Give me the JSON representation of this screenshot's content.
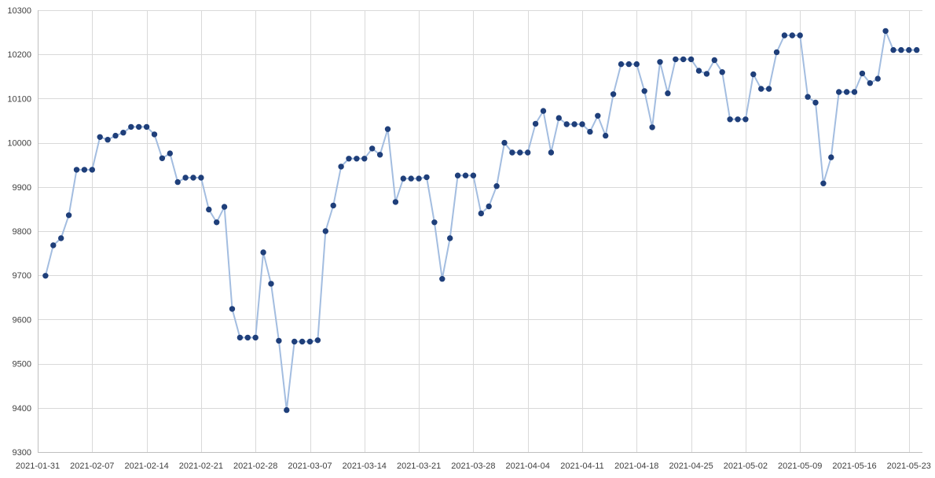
{
  "chart_data": {
    "type": "line",
    "title": "",
    "xlabel": "",
    "ylabel": "",
    "ylim": [
      9300,
      10300
    ],
    "y_ticks": [
      9300,
      9400,
      9500,
      9600,
      9700,
      9800,
      9900,
      10000,
      10100,
      10200,
      10300
    ],
    "x_tick_labels": [
      "2021-01-31",
      "2021-02-07",
      "2021-02-14",
      "2021-02-21",
      "2021-02-28",
      "2021-03-07",
      "2021-03-14",
      "2021-03-21",
      "2021-03-28",
      "2021-04-04",
      "2021-04-11",
      "2021-04-18",
      "2021-04-25",
      "2021-05-02",
      "2021-05-09",
      "2021-05-16",
      "2021-05-23"
    ],
    "grid": true,
    "legend": "none",
    "colors": {
      "line": "#a3bde0",
      "marker": "#1f3f7a",
      "grid": "#d9d9d9"
    },
    "series": [
      {
        "x": [
          "2021-02-01",
          "2021-02-02",
          "2021-02-03",
          "2021-02-04",
          "2021-02-05",
          "2021-02-06",
          "2021-02-07",
          "2021-02-08",
          "2021-02-09",
          "2021-02-10",
          "2021-02-11",
          "2021-02-12",
          "2021-02-13",
          "2021-02-14",
          "2021-02-15",
          "2021-02-16",
          "2021-02-17",
          "2021-02-18",
          "2021-02-19",
          "2021-02-20",
          "2021-02-21",
          "2021-02-22",
          "2021-02-23",
          "2021-02-24",
          "2021-02-25",
          "2021-02-26",
          "2021-02-27",
          "2021-02-28",
          "2021-03-01",
          "2021-03-02",
          "2021-03-03",
          "2021-03-04",
          "2021-03-05",
          "2021-03-06",
          "2021-03-07",
          "2021-03-08",
          "2021-03-09",
          "2021-03-10",
          "2021-03-11",
          "2021-03-12",
          "2021-03-13",
          "2021-03-14",
          "2021-03-15",
          "2021-03-16",
          "2021-03-17",
          "2021-03-18",
          "2021-03-19",
          "2021-03-20",
          "2021-03-21",
          "2021-03-22",
          "2021-03-23",
          "2021-03-24",
          "2021-03-25",
          "2021-03-26",
          "2021-03-27",
          "2021-03-28",
          "2021-03-29",
          "2021-03-30",
          "2021-03-31",
          "2021-04-01",
          "2021-04-02",
          "2021-04-03",
          "2021-04-04",
          "2021-04-05",
          "2021-04-06",
          "2021-04-07",
          "2021-04-08",
          "2021-04-09",
          "2021-04-10",
          "2021-04-11",
          "2021-04-12",
          "2021-04-13",
          "2021-04-14",
          "2021-04-15",
          "2021-04-16",
          "2021-04-17",
          "2021-04-18",
          "2021-04-19",
          "2021-04-20",
          "2021-04-21",
          "2021-04-22",
          "2021-04-23",
          "2021-04-24",
          "2021-04-25",
          "2021-04-26",
          "2021-04-27",
          "2021-04-28",
          "2021-04-29",
          "2021-04-30",
          "2021-05-01",
          "2021-05-02",
          "2021-05-03",
          "2021-05-04",
          "2021-05-05",
          "2021-05-06",
          "2021-05-07",
          "2021-05-08",
          "2021-05-09",
          "2021-05-10",
          "2021-05-11",
          "2021-05-12",
          "2021-05-13",
          "2021-05-14",
          "2021-05-15",
          "2021-05-16",
          "2021-05-17",
          "2021-05-18",
          "2021-05-19",
          "2021-05-20",
          "2021-05-21",
          "2021-05-22",
          "2021-05-23",
          "2021-05-24"
        ],
        "values": [
          9699,
          9768,
          9784,
          9836,
          9939,
          9939,
          9939,
          10013,
          10007,
          10016,
          10023,
          10036,
          10036,
          10036,
          10019,
          9965,
          9976,
          9911,
          9921,
          9921,
          9921,
          9849,
          9820,
          9855,
          9624,
          9559,
          9559,
          9559,
          9752,
          9681,
          9552,
          9395,
          9550,
          9550,
          9550,
          9553,
          9800,
          9858,
          9946,
          9964,
          9964,
          9964,
          9987,
          9973,
          10031,
          9866,
          9919,
          9919,
          9919,
          9922,
          9820,
          9692,
          9784,
          9926,
          9926,
          9926,
          9840,
          9856,
          9902,
          10000,
          9978,
          9978,
          9978,
          10043,
          10072,
          9978,
          10056,
          10042,
          10042,
          10042,
          10025,
          10061,
          10016,
          10110,
          10178,
          10178,
          10178,
          10117,
          10035,
          10183,
          10112,
          10189,
          10189,
          10189,
          10163,
          10156,
          10187,
          10160,
          10053,
          10053,
          10053,
          10155,
          10122,
          10122,
          10205,
          10243,
          10243,
          10243,
          10104,
          10091,
          9908,
          9967,
          10115,
          10115,
          10115,
          10157,
          10135,
          10145,
          10253,
          10210,
          10210,
          10210,
          10210
        ]
      }
    ]
  }
}
